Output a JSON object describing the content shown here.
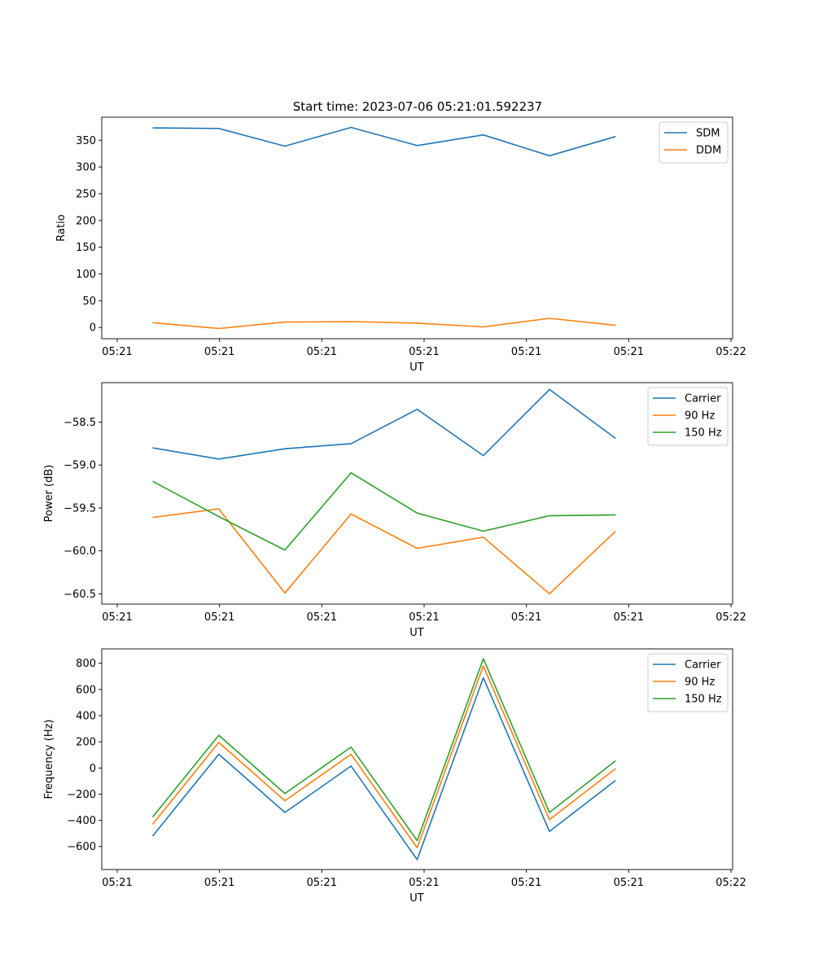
{
  "title": "Start time: 2023-07-06 05:21:01.592237",
  "colors": {
    "blue": "#1f77b4",
    "orange": "#ff7f0e",
    "green": "#2ca02c"
  },
  "chart_data": [
    {
      "type": "line",
      "xlabel": "UT",
      "ylabel": "Ratio",
      "x_tick_labels": [
        "05:21",
        "05:21",
        "05:21",
        "05:21",
        "05:21",
        "05:21",
        "05:22"
      ],
      "xlim": [
        0,
        12.4
      ],
      "x": [
        1,
        2.3,
        3.6,
        4.9,
        6.2,
        7.5,
        8.8,
        10.1
      ],
      "ylim": [
        -21,
        393
      ],
      "yticks": [
        0,
        50,
        100,
        150,
        200,
        250,
        300,
        350
      ],
      "legend_loc": "upper right",
      "series": [
        {
          "name": "SDM",
          "color": "#1f77b4",
          "values": [
            373,
            372,
            339,
            374,
            340,
            360,
            321,
            357
          ]
        },
        {
          "name": "DDM",
          "color": "#ff7f0e",
          "values": [
            9,
            -2,
            10,
            11,
            8,
            1,
            17,
            4
          ]
        }
      ]
    },
    {
      "type": "line",
      "xlabel": "UT",
      "ylabel": "Power (dB)",
      "x_tick_labels": [
        "05:21",
        "05:21",
        "05:21",
        "05:21",
        "05:21",
        "05:21",
        "05:22"
      ],
      "xlim": [
        0,
        12.4
      ],
      "x": [
        1,
        2.3,
        3.6,
        4.9,
        6.2,
        7.5,
        8.8,
        10.1
      ],
      "ylim": [
        -60.62,
        -58.04
      ],
      "yticks": [
        -58.5,
        -59.0,
        -59.5,
        -60.0,
        -60.5
      ],
      "ytick_labels": [
        "−58.5",
        "−59.0",
        "−59.5",
        "−60.0",
        "−60.5"
      ],
      "legend_loc": "upper right",
      "series": [
        {
          "name": "Carrier",
          "color": "#1f77b4",
          "values": [
            -58.8,
            -58.93,
            -58.81,
            -58.75,
            -58.35,
            -58.89,
            -58.12,
            -58.69
          ]
        },
        {
          "name": "90 Hz",
          "color": "#ff7f0e",
          "values": [
            -59.61,
            -59.51,
            -60.49,
            -59.57,
            -59.97,
            -59.84,
            -60.5,
            -59.77
          ]
        },
        {
          "name": "150 Hz",
          "color": "#2ca02c",
          "values": [
            -59.19,
            -59.6,
            -59.99,
            -59.09,
            -59.56,
            -59.77,
            -59.59,
            -59.58
          ]
        }
      ]
    },
    {
      "type": "line",
      "xlabel": "UT",
      "ylabel": "Frequency (Hz)",
      "x_tick_labels": [
        "05:21",
        "05:21",
        "05:21",
        "05:21",
        "05:21",
        "05:21",
        "05:22"
      ],
      "xlim": [
        0,
        12.4
      ],
      "x": [
        1,
        2.3,
        3.6,
        4.9,
        6.2,
        7.5,
        8.8,
        10.1
      ],
      "ylim": [
        -776,
        910
      ],
      "yticks": [
        800,
        600,
        400,
        200,
        0,
        -200,
        -400,
        -600
      ],
      "ytick_labels": [
        "800",
        "600",
        "400",
        "200",
        "0",
        "−200",
        "−400",
        "−600"
      ],
      "legend_loc": "upper right",
      "series": [
        {
          "name": "Carrier",
          "color": "#1f77b4",
          "values": [
            -520,
            105,
            -340,
            15,
            -700,
            690,
            -485,
            -95
          ]
        },
        {
          "name": "90 Hz",
          "color": "#ff7f0e",
          "values": [
            -430,
            195,
            -250,
            105,
            -610,
            780,
            -395,
            -5
          ]
        },
        {
          "name": "150 Hz",
          "color": "#2ca02c",
          "values": [
            -375,
            250,
            -195,
            160,
            -555,
            835,
            -340,
            55
          ]
        }
      ]
    }
  ]
}
